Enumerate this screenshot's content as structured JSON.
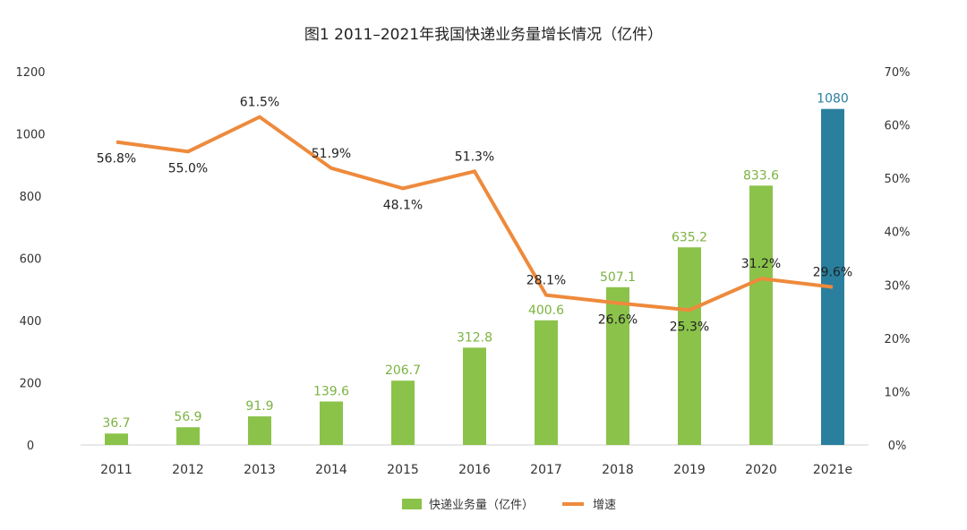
{
  "chart_data": {
    "type": "bar",
    "title": "图1 2011–2021年我国快递业务量增长情况（亿件）",
    "categories": [
      "2011",
      "2012",
      "2013",
      "2014",
      "2015",
      "2016",
      "2017",
      "2018",
      "2019",
      "2020",
      "2021e"
    ],
    "series": [
      {
        "name": "快递业务量（亿件）",
        "type": "bar",
        "axis": "left",
        "values": [
          36.7,
          56.9,
          91.9,
          139.6,
          206.7,
          312.8,
          400.6,
          507.1,
          635.2,
          833.6,
          1080
        ],
        "labels": [
          "36.7",
          "56.9",
          "91.9",
          "139.6",
          "206.7",
          "312.8",
          "400.6",
          "507.1",
          "635.2",
          "833.6",
          "1080"
        ]
      },
      {
        "name": "增速",
        "type": "line",
        "axis": "right",
        "values": [
          56.8,
          55.0,
          61.5,
          51.9,
          48.1,
          51.3,
          28.1,
          26.6,
          25.3,
          31.2,
          29.6
        ],
        "labels": [
          "56.8%",
          "55.0%",
          "61.5%",
          "51.9%",
          "48.1%",
          "51.3%",
          "28.1%",
          "26.6%",
          "25.3%",
          "31.2%",
          "29.6%"
        ]
      }
    ],
    "y_left": {
      "min": 0,
      "max": 1200,
      "ticks": [
        "0",
        "200",
        "400",
        "600",
        "800",
        "1000",
        "1200"
      ]
    },
    "y_right": {
      "min": 0,
      "max": 70,
      "ticks": [
        "0%",
        "10%",
        "20%",
        "30%",
        "40%",
        "50%",
        "60%",
        "70%"
      ]
    },
    "legend_position": "bottom-center",
    "colors": {
      "bar": "#8BC34A",
      "bar_highlight": "#2A7F9E",
      "bar_label": "#7CB342",
      "bar_highlight_label": "#2A7F9E",
      "line": "#EE8A3C"
    }
  }
}
